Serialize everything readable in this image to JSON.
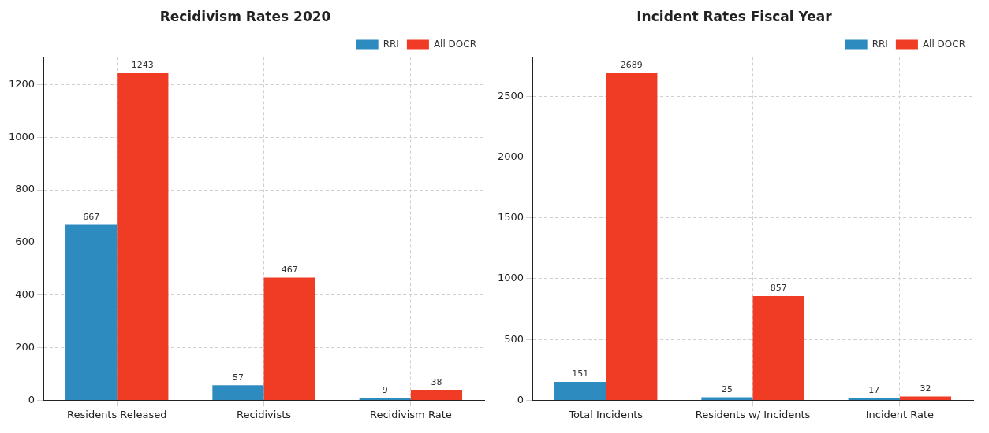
{
  "chart_data": [
    {
      "type": "bar",
      "title": "Recidivism Rates 2020",
      "categories": [
        "Residents Released",
        "Recidivists",
        "Recidivism Rate"
      ],
      "series": [
        {
          "name": "RRI",
          "color": "#2e8bc0",
          "values": [
            667,
            57,
            9
          ]
        },
        {
          "name": "All DOCR",
          "color": "#f03c24",
          "values": [
            1243,
            467,
            38
          ]
        }
      ],
      "ylim": [
        0,
        1305
      ],
      "yticks": [
        0,
        200,
        400,
        600,
        800,
        1000,
        1200
      ],
      "grid": true,
      "legend": "top right",
      "data_labels": true
    },
    {
      "type": "bar",
      "title": "Incident Rates Fiscal Year",
      "categories": [
        "Total Incidents",
        "Residents w/ Incidents",
        "Incident Rate"
      ],
      "series": [
        {
          "name": "RRI",
          "color": "#2e8bc0",
          "values": [
            151,
            25,
            17
          ]
        },
        {
          "name": "All DOCR",
          "color": "#f03c24",
          "values": [
            2689,
            857,
            32
          ]
        }
      ],
      "ylim": [
        0,
        2823
      ],
      "yticks": [
        0,
        500,
        1000,
        1500,
        2000,
        2500
      ],
      "grid": true,
      "legend": "top right",
      "data_labels": true
    }
  ]
}
